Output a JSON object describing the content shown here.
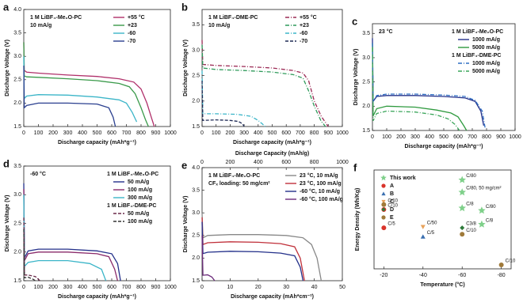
{
  "chart_data": [
    {
      "label": "a",
      "type": "line",
      "xlabel": "Discharge capacity (mAh*g⁻¹)",
      "ylabel": "Discharge Voltage (V)",
      "xlim": [
        0,
        1000
      ],
      "ylim": [
        1.5,
        4.0
      ],
      "xticks": [
        0,
        100,
        200,
        300,
        400,
        500,
        600,
        700,
        800,
        900,
        1000
      ],
      "yticks": [
        1.5,
        {
          "value": 2,
          "label": "2.0"
        },
        2.5,
        {
          "value": 3,
          "label": "3.0"
        },
        3.5,
        {
          "value": 4,
          "label": "4.0"
        }
      ],
      "annotations": [
        "1 M LiBF₄-Me₂O-PC",
        "10 mA/g"
      ],
      "groups": [
        {
          "series": [
            {
              "name": "+55 °C",
              "color": "#b0306a",
              "dash": "solid",
              "x": [
                0,
                3,
                20,
                100,
                300,
                500,
                650,
                750,
                800,
                840,
                870,
                890
              ],
              "values": [
                3.3,
                2.7,
                2.66,
                2.64,
                2.6,
                2.57,
                2.52,
                2.45,
                2.3,
                2.0,
                1.7,
                1.5
              ]
            },
            {
              "name": "+23",
              "color": "#3a9a4a",
              "dash": "solid",
              "x": [
                0,
                3,
                20,
                100,
                300,
                500,
                650,
                720,
                760,
                800,
                830,
                850
              ],
              "values": [
                3.3,
                2.58,
                2.56,
                2.55,
                2.52,
                2.48,
                2.42,
                2.35,
                2.2,
                1.9,
                1.65,
                1.5
              ]
            },
            {
              "name": "-60",
              "color": "#3bb5c8",
              "dash": "solid",
              "x": [
                0,
                3,
                20,
                100,
                300,
                500,
                650,
                700,
                740,
                770
              ],
              "values": [
                3.0,
                2.1,
                2.15,
                2.18,
                2.17,
                2.13,
                2.07,
                2.0,
                1.8,
                1.6
              ]
            },
            {
              "name": "-70",
              "color": "#2a3f8f",
              "dash": "solid",
              "x": [
                0,
                3,
                20,
                100,
                300,
                500,
                580,
                610,
                625
              ],
              "values": [
                2.8,
                1.9,
                1.95,
                2.0,
                2.0,
                1.98,
                1.9,
                1.7,
                1.5
              ]
            }
          ]
        }
      ]
    },
    {
      "label": "b",
      "type": "line",
      "xlabel": "Discharge capacity (mAh*g⁻¹)",
      "ylabel": "Discharge Voltage (V)",
      "xlim": [
        0,
        1000
      ],
      "ylim": [
        1.5,
        3.8
      ],
      "xticks": [
        0,
        100,
        200,
        300,
        400,
        500,
        600,
        700,
        800,
        900,
        1000
      ],
      "yticks": [
        1.5,
        {
          "value": 2,
          "label": "2.0"
        },
        2.5,
        {
          "value": 3,
          "label": "3.0"
        },
        3.5
      ],
      "annotations": [
        "1 M LiBF₄-DME-PC",
        "10 mA/g"
      ],
      "groups": [
        {
          "series": [
            {
              "name": "+55 °C",
              "color": "#9b2a55",
              "dash": "dashdot",
              "x": [
                0,
                5,
                100,
                300,
                500,
                650,
                720,
                760,
                800,
                850,
                900
              ],
              "values": [
                3.2,
                2.72,
                2.7,
                2.68,
                2.65,
                2.6,
                2.55,
                2.4,
                2.0,
                1.7,
                1.5
              ]
            },
            {
              "name": "+23",
              "color": "#2e9a5a",
              "dash": "dashdot",
              "x": [
                0,
                5,
                100,
                300,
                500,
                650,
                720,
                760,
                800,
                850,
                880
              ],
              "values": [
                3.1,
                2.65,
                2.62,
                2.6,
                2.57,
                2.52,
                2.45,
                2.2,
                1.9,
                1.6,
                1.5
              ]
            },
            {
              "name": "-60",
              "color": "#3bb5c8",
              "dash": "dashdot",
              "x": [
                0,
                5,
                100,
                250,
                350,
                400,
                430,
                450
              ],
              "values": [
                2.6,
                1.75,
                1.75,
                1.74,
                1.7,
                1.62,
                1.55,
                1.5
              ]
            },
            {
              "name": "-70",
              "color": "#1f2a55",
              "dash": "dash",
              "x": [
                0,
                5,
                100,
                200,
                260,
                290,
                300
              ],
              "values": [
                2.4,
                1.62,
                1.63,
                1.62,
                1.6,
                1.55,
                1.5
              ]
            }
          ]
        }
      ]
    },
    {
      "label": "c",
      "type": "line",
      "xlabel": "Discharge capacity (mAh*g⁻¹)",
      "ylabel": "Discharge Voltage (V)",
      "xlim": [
        0,
        1000
      ],
      "ylim": [
        1.5,
        3.7
      ],
      "xticks": [
        0,
        100,
        200,
        300,
        400,
        500,
        600,
        700,
        800,
        900,
        1000
      ],
      "yticks": [
        1.5,
        {
          "value": 2,
          "label": "2.0"
        },
        2.5,
        {
          "value": 3,
          "label": "3.0"
        },
        3.5
      ],
      "annotations": [
        "23 °C"
      ],
      "groups": [
        {
          "title": "1 M LiBF₄-Me₂O-PC",
          "series": [
            {
              "name": "1000 mA/g",
              "color": "#23308a",
              "dash": "solid",
              "x": [
                0,
                5,
                30,
                100,
                300,
                500,
                650,
                720,
                760,
                780
              ],
              "values": [
                3.4,
                2.1,
                2.2,
                2.22,
                2.22,
                2.2,
                2.17,
                2.1,
                1.9,
                1.6
              ]
            },
            {
              "name": "5000 mA/g",
              "color": "#2f9a3f",
              "dash": "solid",
              "x": [
                0,
                5,
                30,
                100,
                300,
                450,
                550,
                600,
                640,
                660
              ],
              "values": [
                3.3,
                1.8,
                1.95,
                2.0,
                1.98,
                1.92,
                1.86,
                1.78,
                1.6,
                1.5
              ]
            }
          ]
        },
        {
          "title": "1 M LiBF₄-DME-PC",
          "series": [
            {
              "name": "1000 mA/g",
              "color": "#2f6fc4",
              "dash": "dashdot",
              "x": [
                0,
                5,
                30,
                100,
                300,
                500,
                650,
                720,
                770,
                790
              ],
              "values": [
                3.3,
                2.1,
                2.22,
                2.25,
                2.25,
                2.23,
                2.2,
                2.12,
                1.9,
                1.55
              ]
            },
            {
              "name": "5000 mA/g",
              "color": "#3aa55a",
              "dash": "dashdot",
              "x": [
                0,
                5,
                30,
                100,
                300,
                450,
                530,
                580,
                610
              ],
              "values": [
                3.2,
                1.7,
                1.85,
                1.9,
                1.88,
                1.82,
                1.74,
                1.62,
                1.5
              ]
            }
          ]
        }
      ]
    },
    {
      "label": "d",
      "type": "line",
      "xlabel": "Discharge capacity (mAh*g⁻¹)",
      "ylabel": "Discharge Voltage (V)",
      "xlim": [
        0,
        1000
      ],
      "ylim": [
        1.5,
        3.5
      ],
      "xticks": [
        0,
        100,
        200,
        300,
        400,
        500,
        600,
        700,
        800,
        900,
        1000
      ],
      "yticks": [
        1.5,
        {
          "value": 2,
          "label": "2.0"
        },
        2.5,
        {
          "value": 3,
          "label": "3.0"
        },
        3.5
      ],
      "annotations": [
        "-60 °C"
      ],
      "groups": [
        {
          "title": "1 M LiBF₄-Me₂O-PC",
          "series": [
            {
              "name": "50 mA/g",
              "color": "#23308a",
              "dash": "solid",
              "x": [
                0,
                5,
                30,
                100,
                300,
                500,
                600,
                640,
                660
              ],
              "values": [
                3.2,
                1.9,
                2.02,
                2.05,
                2.05,
                2.02,
                1.97,
                1.8,
                1.5
              ]
            },
            {
              "name": "100 mA/g",
              "color": "#8a2a6a",
              "dash": "solid",
              "x": [
                0,
                5,
                30,
                100,
                300,
                500,
                580,
                620,
                640
              ],
              "values": [
                3.1,
                1.85,
                1.97,
                2.0,
                2.0,
                1.97,
                1.92,
                1.7,
                1.5
              ]
            },
            {
              "name": "300 mA/g",
              "color": "#3bb5c8",
              "dash": "solid",
              "x": [
                0,
                5,
                30,
                100,
                300,
                450,
                530,
                560
              ],
              "values": [
                3.0,
                1.75,
                1.82,
                1.85,
                1.85,
                1.8,
                1.7,
                1.5
              ]
            }
          ]
        },
        {
          "title": "1 M LiBF₄-DME-PC",
          "series": [
            {
              "name": "50 mA/g",
              "color": "#6b2a4a",
              "dash": "dash",
              "x": [
                0,
                5,
                30,
                80,
                110
              ],
              "values": [
                2.6,
                1.6,
                1.6,
                1.57,
                1.5
              ]
            },
            {
              "name": "100 mA/g",
              "color": "#333333",
              "dash": "dash",
              "x": [
                0,
                5,
                30,
                60,
                80
              ],
              "values": [
                2.4,
                1.55,
                1.56,
                1.53,
                1.5
              ]
            }
          ]
        }
      ]
    },
    {
      "label": "e",
      "type": "line",
      "xlabel": "Discharge capacity (mAh*cm⁻²)",
      "ylabel": "Discharge Voltage (V)",
      "x2label": "Discharge Capacity (mAh/g)",
      "x2lim": [
        0,
        1000
      ],
      "x2ticks": [
        0,
        200,
        400,
        600,
        800,
        1000
      ],
      "xlim": [
        0,
        50
      ],
      "ylim": [
        1.5,
        4.0
      ],
      "xticks": [
        0,
        10,
        20,
        30,
        40,
        50
      ],
      "yticks": [
        1.5,
        {
          "value": 2,
          "label": "2.0"
        },
        2.5,
        {
          "value": 3,
          "label": "3.0"
        },
        3.5,
        {
          "value": 4,
          "label": "4.0"
        }
      ],
      "annotations": [
        "1 M LiBF₄-Me₂O-PC",
        "CFₓ loading: 50 mg/cm²"
      ],
      "groups": [
        {
          "series": [
            {
              "name": "23 °C, 10 mA/g",
              "color": "#888888",
              "dash": "solid",
              "x": [
                0,
                0.3,
                2,
                10,
                20,
                30,
                36,
                39,
                41,
                42.5
              ],
              "values": [
                3.0,
                2.45,
                2.5,
                2.52,
                2.52,
                2.5,
                2.45,
                2.3,
                2.0,
                1.5
              ]
            },
            {
              "name": "23 °C, 100 mA/g",
              "color": "#c0303a",
              "dash": "solid",
              "x": [
                0,
                0.3,
                2,
                10,
                20,
                28,
                33,
                35,
                36.5
              ],
              "values": [
                2.9,
                2.3,
                2.34,
                2.36,
                2.35,
                2.32,
                2.25,
                2.0,
                1.5
              ]
            },
            {
              "name": "-60 °C, 10 mA/g",
              "color": "#23308a",
              "dash": "solid",
              "x": [
                0,
                0.3,
                2,
                10,
                20,
                28,
                33,
                35,
                36
              ],
              "values": [
                2.8,
                2.1,
                2.13,
                2.15,
                2.14,
                2.11,
                2.05,
                1.8,
                1.5
              ]
            },
            {
              "name": "-60 °C, 100 mA/g",
              "color": "#6b2a7a",
              "dash": "solid",
              "x": [
                0,
                0.3,
                2,
                3.5,
                4.5
              ],
              "values": [
                2.5,
                1.62,
                1.63,
                1.58,
                1.5
              ]
            }
          ]
        }
      ]
    },
    {
      "label": "f",
      "type": "scatter",
      "xlabel": "Temperature (°C)",
      "ylabel": "Energy Density (Wh/Kg)",
      "xlim": [
        -15,
        -85
      ],
      "ylim": [
        0,
        2000
      ],
      "xticks": [
        -20,
        -40,
        -60,
        -80
      ],
      "groups": [
        {
          "series": [
            {
              "name": "This work",
              "color": "#7fd08a",
              "marker": "star",
              "x": [
                -60,
                -60,
                -60,
                -70,
                -70
              ],
              "values": [
                1800,
                1550,
                1230,
                1180,
                900
              ],
              "point_labels": [
                "C/80",
                "C/80, 50 mg/cm²",
                "C/8",
                "C/80",
                "C/8"
              ]
            },
            {
              "name": "A",
              "color": "#d9342b",
              "marker": "circle",
              "x": [
                -20,
                -20
              ],
              "values": [
                1200,
                830
              ],
              "point_labels": [
                "C/10",
                "C/5"
              ]
            },
            {
              "name": "B",
              "color": "#3a6fb0",
              "marker": "triangle",
              "x": [
                -40
              ],
              "values": [
                650
              ],
              "point_labels": [
                "C/5"
              ]
            },
            {
              "name": "C",
              "color": "#e8a25a",
              "marker": "triangle-down",
              "x": [
                -40
              ],
              "values": [
                850
              ],
              "point_labels": [
                "C/50"
              ]
            },
            {
              "name": "D",
              "color": "#2e7a3a",
              "marker": "diamond",
              "x": [
                -60
              ],
              "values": [
                830
              ],
              "point_labels": [
                "C3/8"
              ]
            },
            {
              "name": "E",
              "color": "#a07a3a",
              "marker": "circle",
              "x": [
                -20,
                -60,
                -80
              ],
              "values": [
                1300,
                700,
                80
              ],
              "point_labels": [
                "C/10",
                "C/10",
                "C/10"
              ]
            }
          ]
        }
      ]
    }
  ]
}
